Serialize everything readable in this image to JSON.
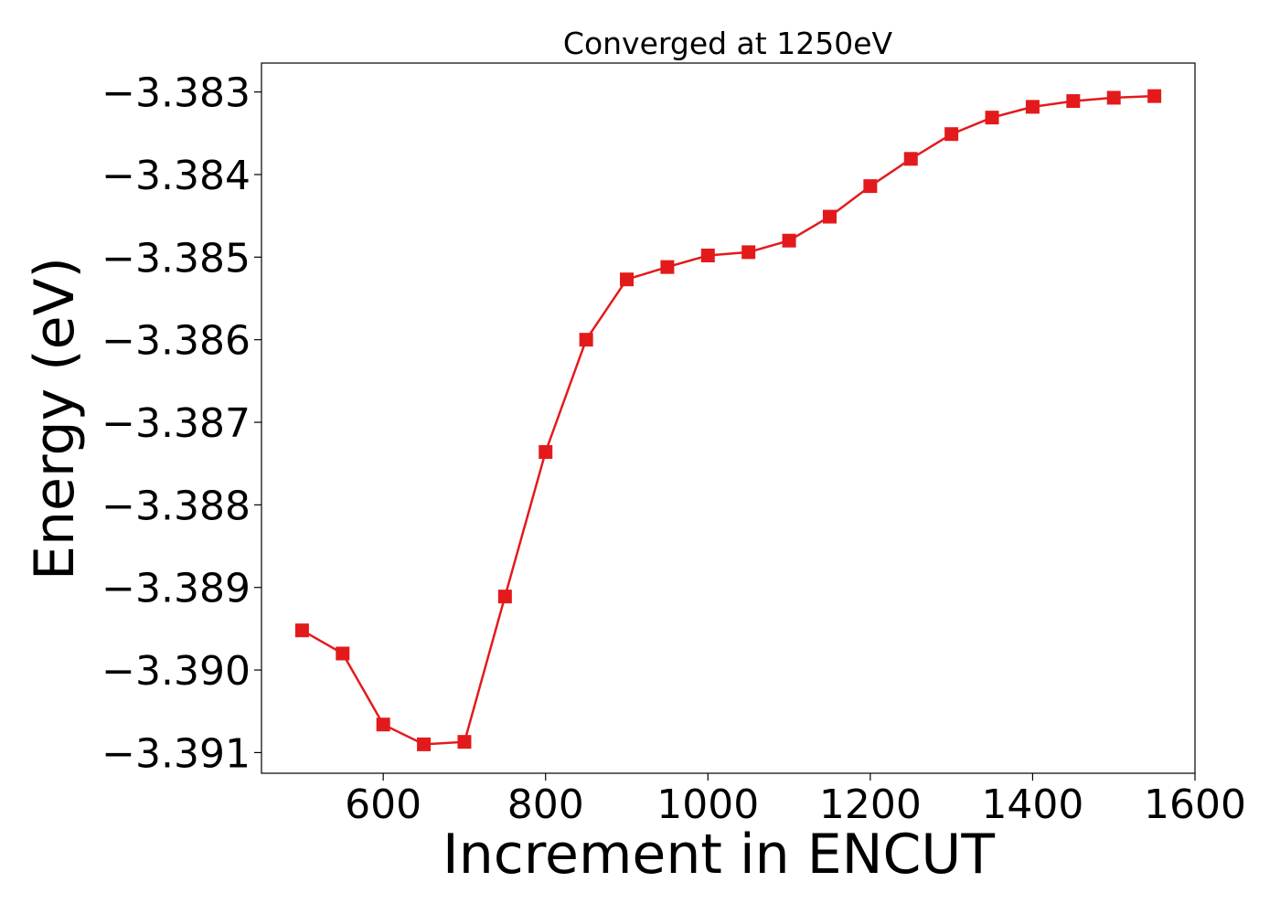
{
  "chart_data": {
    "type": "line",
    "title": "Converged at 1250eV",
    "xlabel": "Increment in ENCUT",
    "ylabel": "Energy (eV)",
    "xlim": [
      450,
      1600
    ],
    "ylim": [
      -3.39125,
      -3.38265
    ],
    "xticks": [
      600,
      800,
      1000,
      1200,
      1400,
      1600
    ],
    "xtick_labels": [
      "600",
      "800",
      "1000",
      "1200",
      "1400",
      "1600"
    ],
    "yticks": [
      -3.383,
      -3.384,
      -3.385,
      -3.386,
      -3.387,
      -3.388,
      -3.389,
      -3.39,
      -3.391
    ],
    "ytick_labels": [
      "−3.383",
      "−3.384",
      "−3.385",
      "−3.386",
      "−3.387",
      "−3.388",
      "−3.389",
      "−3.390",
      "−3.391"
    ],
    "grid": false,
    "legend": "none",
    "series": [
      {
        "color": "#e31a1c",
        "marker": "square",
        "x": [
          500,
          550,
          600,
          650,
          700,
          750,
          800,
          850,
          900,
          950,
          1000,
          1050,
          1100,
          1150,
          1200,
          1250,
          1300,
          1350,
          1400,
          1450,
          1500,
          1550
        ],
        "y": [
          -3.38952,
          -3.3898,
          -3.39066,
          -3.3909,
          -3.39087,
          -3.38911,
          -3.38736,
          -3.386,
          -3.38527,
          -3.38512,
          -3.38498,
          -3.38494,
          -3.3848,
          -3.38451,
          -3.38414,
          -3.38381,
          -3.38351,
          -3.38331,
          -3.38318,
          -3.38311,
          -3.38307,
          -3.38305
        ]
      }
    ]
  }
}
